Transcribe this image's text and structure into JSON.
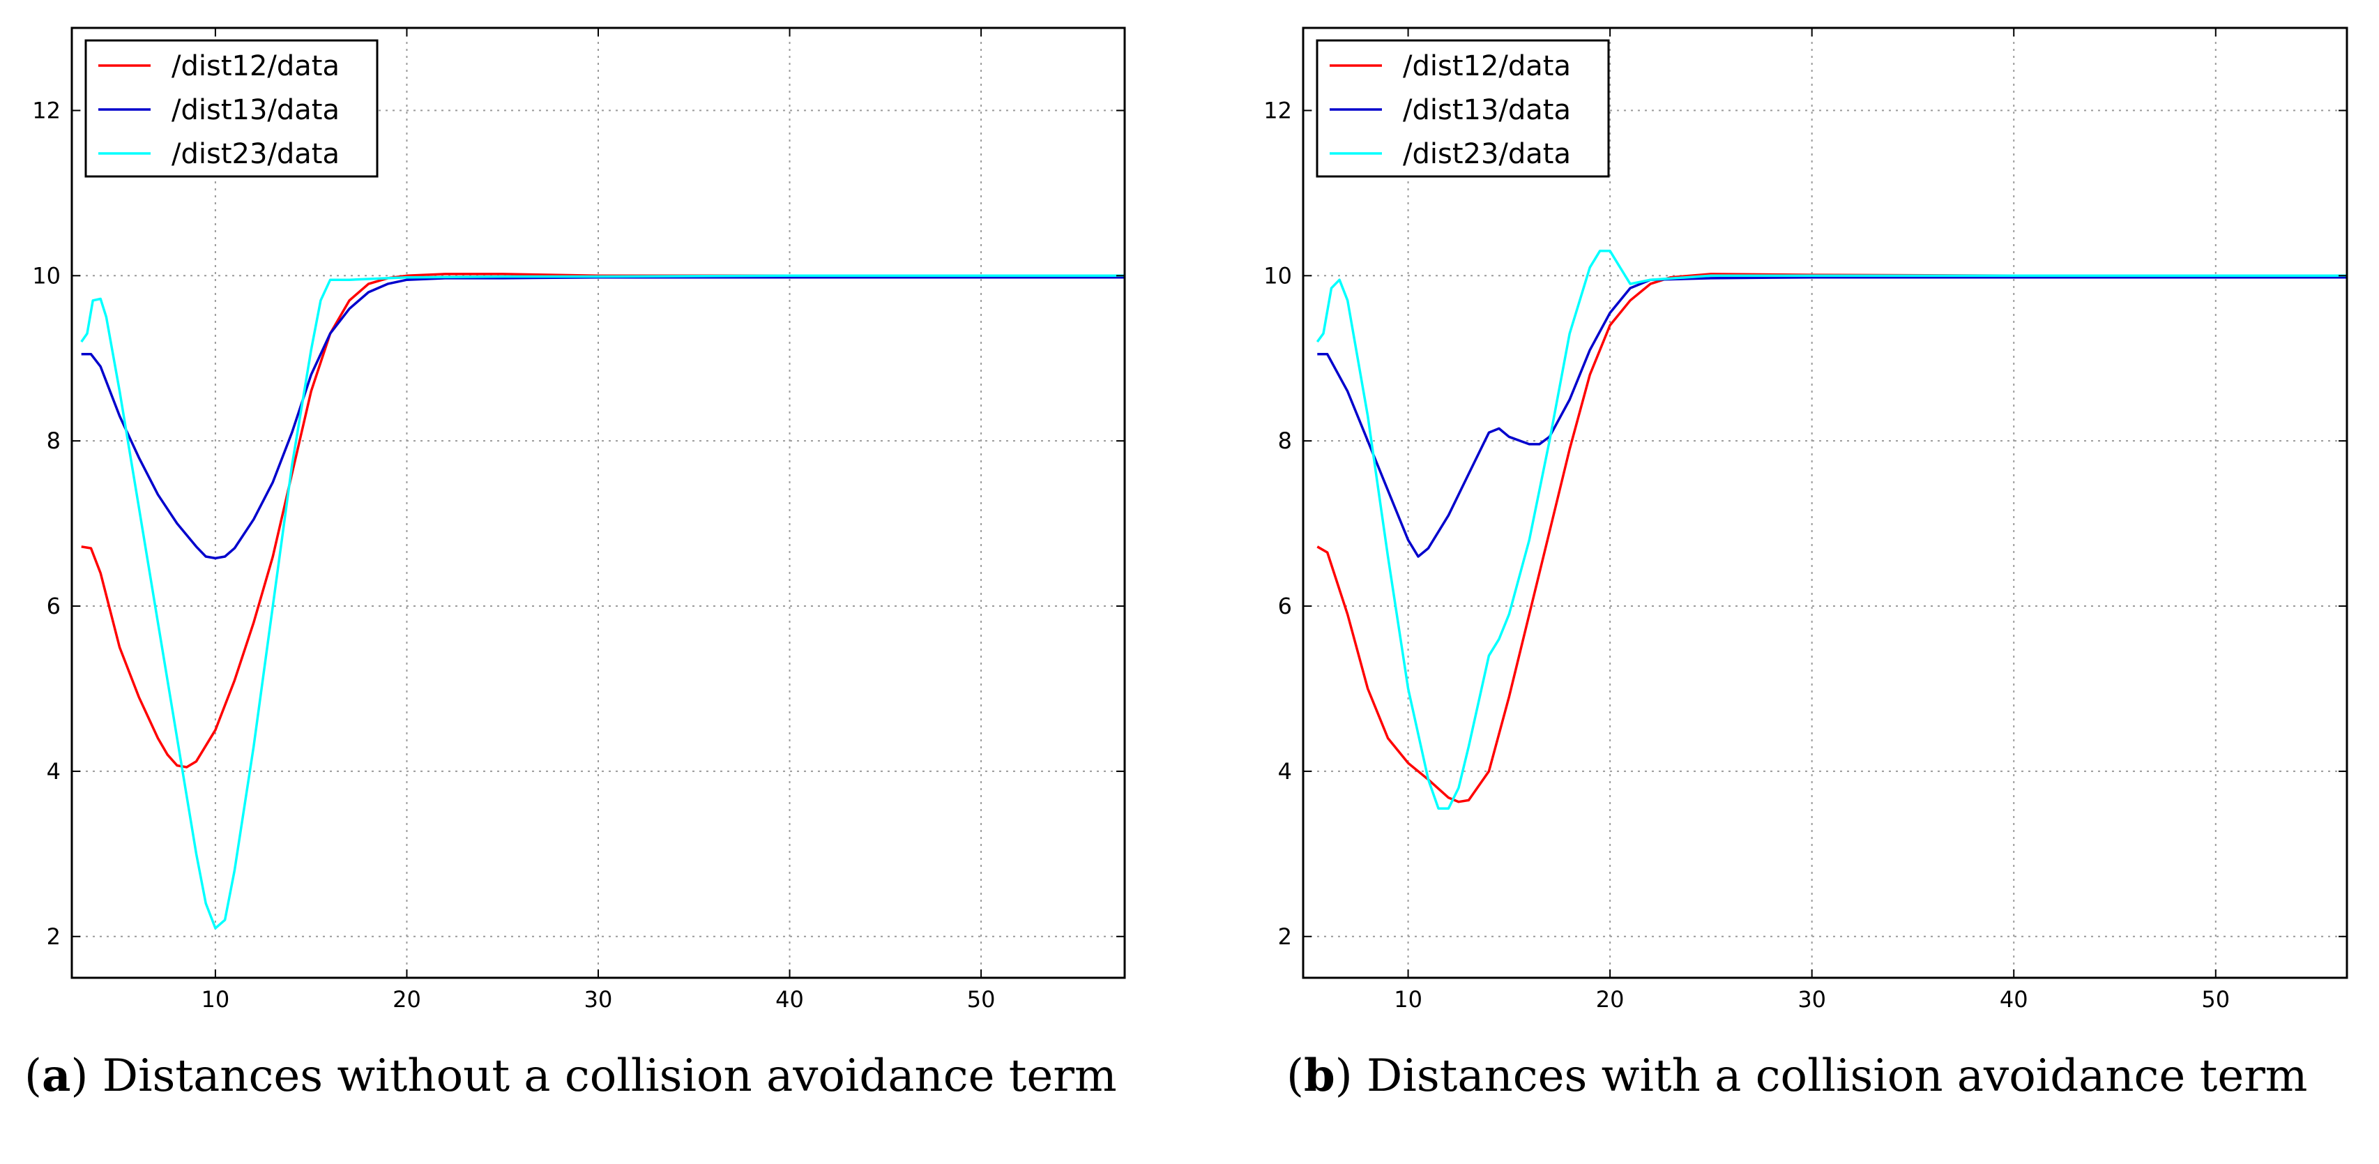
{
  "colors": {
    "dist12": "#ff0000",
    "dist13": "#0000cc",
    "dist23": "#00ffff",
    "grid": "#9a9a9a"
  },
  "chart_data": [
    {
      "type": "line",
      "panel_label": "a",
      "caption": "Distances without a collision avoidance term",
      "xlim": [
        2.5,
        57.5
      ],
      "ylim": [
        1.5,
        13
      ],
      "xticks": [
        10,
        20,
        30,
        40,
        50
      ],
      "yticks": [
        2,
        4,
        6,
        8,
        10,
        12
      ],
      "grid": true,
      "legend_position": "upper-left",
      "series": [
        {
          "name": "/dist12/data",
          "color": "#ff0000",
          "x": [
            3,
            3.5,
            4,
            5,
            6,
            7,
            7.5,
            8,
            8.5,
            9,
            10,
            11,
            12,
            13,
            14,
            15,
            16,
            17,
            18,
            19,
            20,
            22,
            25,
            30,
            40,
            57.5
          ],
          "y": [
            6.72,
            6.7,
            6.4,
            5.5,
            4.9,
            4.4,
            4.2,
            4.07,
            4.05,
            4.12,
            4.5,
            5.1,
            5.8,
            6.6,
            7.6,
            8.6,
            9.3,
            9.7,
            9.9,
            9.97,
            10.0,
            10.02,
            10.02,
            10.0,
            10.0,
            10.0
          ]
        },
        {
          "name": "/dist13/data",
          "color": "#0000cc",
          "x": [
            3,
            3.5,
            4,
            5,
            6,
            7,
            8,
            9,
            9.5,
            10,
            10.5,
            11,
            12,
            13,
            14,
            15,
            16,
            17,
            18,
            19,
            20,
            22,
            25,
            30,
            40,
            57.5
          ],
          "y": [
            9.05,
            9.05,
            8.9,
            8.3,
            7.8,
            7.35,
            7.0,
            6.72,
            6.6,
            6.58,
            6.6,
            6.7,
            7.05,
            7.5,
            8.1,
            8.8,
            9.3,
            9.6,
            9.8,
            9.9,
            9.95,
            9.97,
            9.97,
            9.98,
            9.98,
            9.98
          ]
        },
        {
          "name": "/dist23/data",
          "color": "#00ffff",
          "x": [
            3,
            3.3,
            3.6,
            4,
            4.3,
            5,
            6,
            7,
            8,
            9,
            9.5,
            10,
            10.5,
            11,
            12,
            13,
            14,
            15,
            15.5,
            16,
            16.5,
            17,
            18,
            20,
            25,
            30,
            40,
            57.5
          ],
          "y": [
            9.2,
            9.3,
            9.7,
            9.72,
            9.5,
            8.6,
            7.2,
            5.8,
            4.4,
            3.0,
            2.4,
            2.1,
            2.2,
            2.8,
            4.3,
            6.0,
            7.7,
            9.1,
            9.7,
            9.95,
            9.95,
            9.95,
            9.96,
            9.98,
            9.99,
            9.99,
            10.0,
            10.0
          ]
        }
      ]
    },
    {
      "type": "line",
      "panel_label": "b",
      "caption": "Distances with a collision avoidance term",
      "xlim": [
        4.8,
        56.5
      ],
      "ylim": [
        1.5,
        13
      ],
      "xticks": [
        10,
        20,
        30,
        40,
        50
      ],
      "yticks": [
        2,
        4,
        6,
        8,
        10,
        12
      ],
      "grid": true,
      "legend_position": "upper-left",
      "series": [
        {
          "name": "/dist12/data",
          "color": "#ff0000",
          "x": [
            5.5,
            6,
            7,
            8,
            9,
            10,
            11,
            12,
            12.5,
            13,
            14,
            15,
            16,
            17,
            18,
            19,
            20,
            21,
            22,
            23,
            25,
            30,
            40,
            56.5
          ],
          "y": [
            6.72,
            6.65,
            5.9,
            5.0,
            4.4,
            4.1,
            3.9,
            3.68,
            3.63,
            3.65,
            4.0,
            4.9,
            5.9,
            6.9,
            7.9,
            8.8,
            9.4,
            9.7,
            9.9,
            9.98,
            10.02,
            10.01,
            10.0,
            10.0
          ]
        },
        {
          "name": "/dist13/data",
          "color": "#0000cc",
          "x": [
            5.5,
            6,
            7,
            8,
            9,
            10,
            10.5,
            11,
            12,
            13,
            14,
            14.5,
            15,
            16,
            16.5,
            17,
            18,
            19,
            20,
            21,
            22,
            25,
            30,
            40,
            56.5
          ],
          "y": [
            9.05,
            9.05,
            8.6,
            8.0,
            7.4,
            6.8,
            6.6,
            6.7,
            7.1,
            7.6,
            8.1,
            8.15,
            8.05,
            7.96,
            7.96,
            8.05,
            8.5,
            9.1,
            9.55,
            9.85,
            9.95,
            9.97,
            9.98,
            9.98,
            9.98
          ]
        },
        {
          "name": "/dist23/data",
          "color": "#00ffff",
          "x": [
            5.5,
            5.8,
            6.2,
            6.6,
            7,
            8,
            9,
            10,
            11,
            11.5,
            12,
            12.5,
            13,
            14,
            14.5,
            15,
            16,
            17,
            18,
            19,
            19.5,
            20,
            20.5,
            21,
            22,
            25,
            30,
            40,
            56.5
          ],
          "y": [
            9.2,
            9.3,
            9.85,
            9.95,
            9.7,
            8.3,
            6.6,
            5.0,
            3.9,
            3.55,
            3.55,
            3.8,
            4.3,
            5.4,
            5.6,
            5.9,
            6.8,
            8.0,
            9.3,
            10.1,
            10.3,
            10.3,
            10.1,
            9.9,
            9.95,
            10.0,
            10.0,
            10.0,
            10.0
          ]
        }
      ]
    }
  ]
}
